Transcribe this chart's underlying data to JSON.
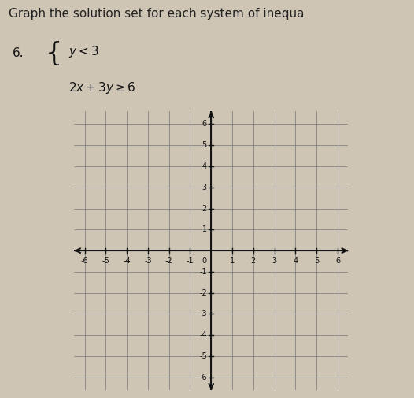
{
  "title_text": "Graph the solution set for each system of inequa",
  "problem_number": "6.",
  "xmin": -6,
  "xmax": 6,
  "ymin": -6,
  "ymax": 6,
  "background_color": "#cec5b5",
  "grid_color": "#777777",
  "axis_color": "#111111",
  "title_fontsize": 11,
  "tick_fontsize": 7,
  "prob_fontsize": 11
}
